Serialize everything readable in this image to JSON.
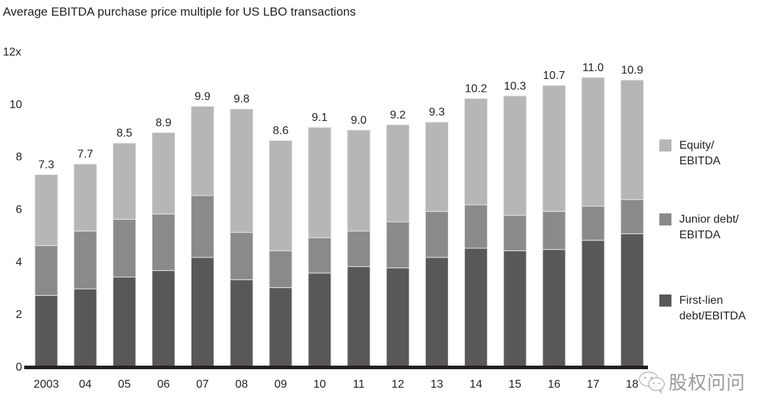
{
  "chart_data": {
    "type": "bar",
    "stacked": true,
    "title": "Average EBITDA purchase price multiple for US LBO transactions",
    "xlabel": "",
    "ylabel": "",
    "ylim": [
      0,
      12
    ],
    "yticks": [
      0,
      2,
      4,
      6,
      8,
      10,
      12
    ],
    "ytick_labels": [
      "0",
      "2",
      "4",
      "6",
      "8",
      "10",
      "12x"
    ],
    "categories": [
      "2003",
      "04",
      "05",
      "06",
      "07",
      "08",
      "09",
      "10",
      "11",
      "12",
      "13",
      "14",
      "15",
      "16",
      "17",
      "18"
    ],
    "series": [
      {
        "name": "First-lien debt/EBITDA",
        "color": "#595758",
        "values": [
          2.7,
          2.95,
          3.4,
          3.65,
          4.15,
          3.3,
          3.0,
          3.55,
          3.8,
          3.75,
          4.15,
          4.5,
          4.4,
          4.45,
          4.8,
          5.05
        ]
      },
      {
        "name": "Junior debt/EBITDA",
        "color": "#8a8a8a",
        "values": [
          1.9,
          2.2,
          2.2,
          2.15,
          2.35,
          1.8,
          1.4,
          1.35,
          1.35,
          1.75,
          1.75,
          1.65,
          1.35,
          1.45,
          1.3,
          1.3
        ]
      },
      {
        "name": "Equity/EBITDA",
        "color": "#b5b6b6",
        "values": [
          2.7,
          2.55,
          2.9,
          3.1,
          3.4,
          4.7,
          4.2,
          4.2,
          3.85,
          3.7,
          3.4,
          4.05,
          4.55,
          4.8,
          4.9,
          4.55
        ]
      }
    ],
    "totals": [
      7.3,
      7.7,
      8.5,
      8.9,
      9.9,
      9.8,
      8.6,
      9.1,
      9.0,
      9.2,
      9.3,
      10.2,
      10.3,
      10.7,
      11.0,
      10.9
    ],
    "total_labels": [
      "7.3",
      "7.7",
      "8.5",
      "8.9",
      "9.9",
      "9.8",
      "8.6",
      "9.1",
      "9.0",
      "9.2",
      "9.3",
      "10.2",
      "10.3",
      "10.7",
      "11.0",
      "10.9"
    ],
    "legend": {
      "placement": "right",
      "entries": [
        "Equity/\nEBITDA",
        "Junior debt/\nEBITDA",
        "First-lien\ndebt/EBITDA"
      ]
    },
    "grid": false
  },
  "legend_items": [
    {
      "line1": "Equity/",
      "line2": "EBITDA",
      "color": "#b5b6b6"
    },
    {
      "line1": "Junior debt/",
      "line2": "EBITDA",
      "color": "#8a8a8a"
    },
    {
      "line1": "First-lien",
      "line2": "debt/EBITDA",
      "color": "#595758"
    }
  ],
  "watermark": {
    "text": "股权问问",
    "icon": "wechat-icon"
  }
}
